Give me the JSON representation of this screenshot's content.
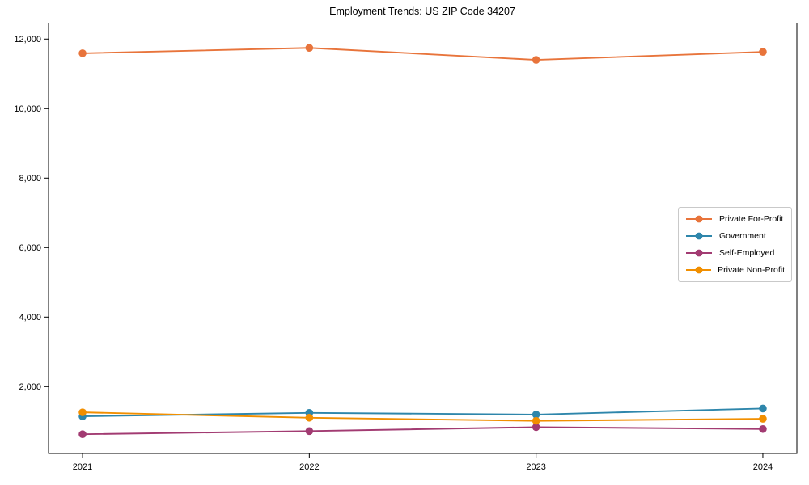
{
  "chart_data": {
    "type": "line",
    "title": "Employment Trends: US ZIP Code 34207",
    "xlabel": "",
    "ylabel": "",
    "categories": [
      "2021",
      "2022",
      "2023",
      "2024"
    ],
    "series": [
      {
        "name": "Private For-Profit",
        "color": "#E8743B",
        "values": [
          11590,
          11745,
          11400,
          11630
        ]
      },
      {
        "name": "Government",
        "color": "#2E86AB",
        "values": [
          1145,
          1245,
          1195,
          1370
        ]
      },
      {
        "name": "Self-Employed",
        "color": "#A23B72",
        "values": [
          630,
          720,
          835,
          780
        ]
      },
      {
        "name": "Private Non-Profit",
        "color": "#F18F01",
        "values": [
          1260,
          1105,
          1015,
          1075
        ]
      }
    ],
    "yticks": [
      2000,
      4000,
      6000,
      8000,
      10000,
      12000
    ],
    "ylim": [
      77,
      12460
    ],
    "grid": false,
    "legend_position": "center-right",
    "marker": "circle"
  }
}
